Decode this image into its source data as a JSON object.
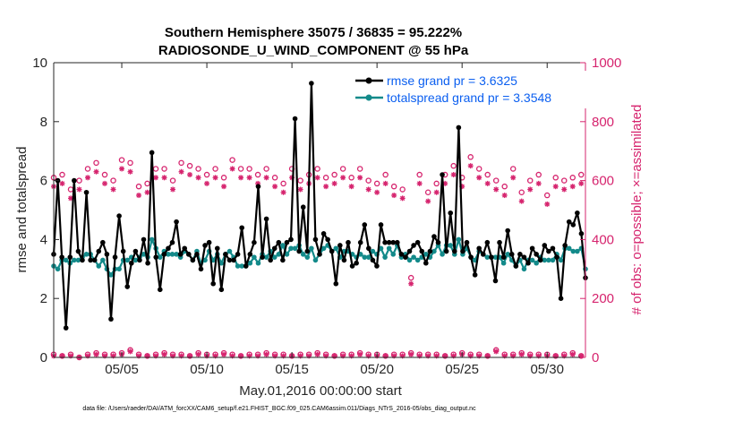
{
  "chart_data": {
    "type": "line",
    "title_line1": "Southern Hemisphere 35075 / 36835 = 95.222%",
    "title_line2": "RADIOSONDE_U_WIND_COMPONENT @ 55 hPa",
    "xlabel": "May.01,2016 00:00:00 start",
    "ylabel_left": "rmse and totalspread",
    "ylabel_right": "# of obs: o=possible; ×=assimilated",
    "footer": "data file: /Users/raeder/DAI/ATM_forcXX/CAM6_setup/f.e21.FHIST_BGC.f09_025.CAM6assim.011/Diags_NTrS_2016-05/obs_diag_output.nc",
    "xlim": [
      1,
      32.25
    ],
    "ylim_left": [
      0,
      10
    ],
    "ylim_right": [
      0,
      1000
    ],
    "x_ticks": [
      5,
      10,
      15,
      20,
      25,
      30
    ],
    "x_tick_labels": [
      "05/05",
      "05/10",
      "05/15",
      "05/20",
      "05/25",
      "05/30"
    ],
    "y_ticks_left": [
      0,
      2,
      4,
      6,
      8,
      10
    ],
    "y_ticks_left_labels": [
      "0",
      "2",
      "4",
      "6",
      "8",
      "10"
    ],
    "y_ticks_right": [
      0,
      200,
      400,
      600,
      800,
      1000
    ],
    "y_ticks_right_labels": [
      "0",
      "200",
      "400",
      "600",
      "800",
      "1000"
    ],
    "colors": {
      "rmse": "#000000",
      "spread": "#138a8a",
      "obs": "#d6246e",
      "legend_text": "#0b5ff0",
      "axis": "#262626"
    },
    "legend_location": "top-right",
    "series": [
      {
        "name": "rmse",
        "legend": "rmse grand pr = 3.6325",
        "values": [
          3.5,
          6.0,
          3.4,
          1.0,
          3.4,
          6.0,
          3.6,
          3.3,
          5.6,
          3.3,
          3.3,
          3.6,
          3.9,
          3.5,
          1.3,
          3.4,
          4.8,
          3.6,
          2.4,
          3.2,
          3.6,
          3.3,
          4.0,
          3.2,
          6.95,
          3.4,
          2.3,
          3.5,
          3.7,
          3.9,
          4.6,
          3.5,
          3.7,
          3.5,
          3.3,
          3.5,
          3.0,
          3.8,
          3.9,
          2.5,
          3.7,
          2.3,
          3.5,
          3.3,
          3.3,
          3.5,
          4.4,
          3.1,
          3.5,
          3.9,
          5.8,
          3.4,
          4.7,
          3.3,
          3.7,
          3.9,
          3.3,
          3.9,
          4.0,
          8.1,
          3.6,
          5.1,
          3.6,
          9.3,
          4.0,
          3.5,
          4.2,
          4.0,
          3.6,
          2.5,
          3.8,
          3.3,
          3.9,
          3.1,
          3.2,
          3.9,
          4.5,
          3.7,
          3.3,
          3.1,
          4.5,
          3.9,
          3.9,
          3.9,
          3.9,
          3.5,
          3.4,
          3.6,
          3.8,
          3.9,
          3.6,
          3.2,
          3.6,
          4.1,
          3.9,
          6.2,
          3.6,
          4.9,
          3.6,
          7.8,
          3.6,
          3.9,
          3.4,
          2.8,
          3.7,
          3.5,
          3.9,
          3.4,
          2.6,
          3.9,
          3.4,
          4.3,
          3.5,
          3.1,
          3.5,
          3.4,
          3.2,
          3.7,
          3.5,
          3.3,
          3.8,
          3.6,
          3.7,
          3.4,
          2.0,
          3.8,
          4.6,
          4.5,
          4.9,
          4.2,
          2.7
        ],
        "marker": "filled-circle"
      },
      {
        "name": "totalspread",
        "legend": "totalspread grand pr = 3.3548",
        "values": [
          3.1,
          3.0,
          3.3,
          3.3,
          3.2,
          3.3,
          3.3,
          3.4,
          3.5,
          3.5,
          3.3,
          3.1,
          3.3,
          3.0,
          2.8,
          3.0,
          3.0,
          3.3,
          3.3,
          3.4,
          3.3,
          3.4,
          3.5,
          3.4,
          4.0,
          3.7,
          3.4,
          3.6,
          3.5,
          3.5,
          3.5,
          3.4,
          3.6,
          3.5,
          3.3,
          3.6,
          3.2,
          3.3,
          3.6,
          3.3,
          3.5,
          3.2,
          3.5,
          3.6,
          3.4,
          3.1,
          3.1,
          3.1,
          3.2,
          3.4,
          3.2,
          3.5,
          3.4,
          3.6,
          3.4,
          3.5,
          3.8,
          3.5,
          3.7,
          3.7,
          3.8,
          3.5,
          3.4,
          3.7,
          3.3,
          3.5,
          3.7,
          3.8,
          3.6,
          3.7,
          3.4,
          3.6,
          3.6,
          3.5,
          3.4,
          3.5,
          3.4,
          3.4,
          3.6,
          3.5,
          3.7,
          3.4,
          3.7,
          3.5,
          3.8,
          3.4,
          3.5,
          3.3,
          3.4,
          3.3,
          3.4,
          3.5,
          3.4,
          3.6,
          3.8,
          3.5,
          3.8,
          3.8,
          3.5,
          4.0,
          3.5,
          3.7,
          3.4,
          3.3,
          3.6,
          3.5,
          3.4,
          3.4,
          3.4,
          3.4,
          3.2,
          3.5,
          3.3,
          3.1,
          3.3,
          3.0,
          3.3,
          3.3,
          3.2,
          3.4,
          3.3,
          3.3,
          3.3,
          3.5,
          3.3,
          3.7,
          3.7,
          3.6,
          3.6,
          3.7,
          3.0
        ],
        "marker": "filled-circle"
      }
    ],
    "obs_series": [
      {
        "name": "possible",
        "marker": "open-circle",
        "x": [
          1.0,
          1.5,
          2.0,
          2.5,
          3.0,
          3.5,
          4.0,
          4.5,
          5.0,
          5.5,
          6.0,
          6.5,
          7.0,
          7.5,
          8.0,
          8.5,
          9.0,
          9.5,
          10.0,
          10.5,
          11.0,
          11.5,
          12.0,
          12.5,
          13.0,
          13.5,
          14.0,
          14.5,
          15.0,
          15.5,
          16.0,
          16.5,
          17.0,
          17.5,
          18.0,
          18.5,
          19.0,
          19.5,
          20.0,
          20.5,
          21.0,
          21.5,
          22.0,
          22.5,
          23.0,
          23.5,
          24.0,
          24.5,
          25.0,
          25.5,
          26.0,
          26.5,
          27.0,
          27.5,
          28.0,
          28.5,
          29.0,
          29.5,
          30.0,
          30.5,
          31.0,
          31.5,
          32.0
        ],
        "values": [
          610,
          620,
          570,
          600,
          640,
          660,
          620,
          600,
          670,
          660,
          580,
          590,
          640,
          640,
          600,
          660,
          650,
          640,
          620,
          640,
          610,
          670,
          640,
          640,
          620,
          640,
          610,
          590,
          640,
          600,
          620,
          640,
          610,
          620,
          640,
          610,
          640,
          600,
          590,
          620,
          580,
          570,
          270,
          620,
          560,
          590,
          620,
          650,
          610,
          680,
          640,
          620,
          600,
          580,
          640,
          560,
          600,
          620,
          550,
          610,
          600,
          610,
          620
        ]
      },
      {
        "name": "assimilated",
        "marker": "asterisk",
        "x": [
          1.0,
          1.5,
          2.0,
          2.5,
          3.0,
          3.5,
          4.0,
          4.5,
          5.0,
          5.5,
          6.0,
          6.5,
          7.0,
          7.5,
          8.0,
          8.5,
          9.0,
          9.5,
          10.0,
          10.5,
          11.0,
          11.5,
          12.0,
          12.5,
          13.0,
          13.5,
          14.0,
          14.5,
          15.0,
          15.5,
          16.0,
          16.5,
          17.0,
          17.5,
          18.0,
          18.5,
          19.0,
          19.5,
          20.0,
          20.5,
          21.0,
          21.5,
          22.0,
          22.5,
          23.0,
          23.5,
          24.0,
          24.5,
          25.0,
          25.5,
          26.0,
          26.5,
          27.0,
          27.5,
          28.0,
          28.5,
          29.0,
          29.5,
          30.0,
          30.5,
          31.0,
          31.5,
          32.0
        ],
        "values": [
          580,
          590,
          540,
          570,
          610,
          630,
          590,
          570,
          640,
          630,
          550,
          560,
          610,
          610,
          570,
          630,
          620,
          610,
          590,
          610,
          580,
          640,
          610,
          610,
          590,
          610,
          580,
          560,
          610,
          570,
          590,
          610,
          580,
          590,
          610,
          580,
          610,
          570,
          560,
          590,
          550,
          540,
          250,
          590,
          530,
          560,
          590,
          620,
          580,
          650,
          610,
          590,
          570,
          550,
          610,
          530,
          570,
          590,
          520,
          580,
          570,
          580,
          590
        ]
      },
      {
        "name": "possible-zero",
        "marker": "open-circle",
        "x": [
          1.0,
          1.5,
          2.0,
          2.5,
          3.0,
          3.5,
          4.0,
          4.5,
          5.0,
          5.5,
          6.0,
          6.5,
          7.0,
          7.5,
          8.0,
          8.5,
          9.0,
          9.5,
          10.0,
          10.5,
          11.0,
          11.5,
          12.0,
          12.5,
          13.0,
          13.5,
          14.0,
          14.5,
          15.0,
          15.5,
          16.0,
          16.5,
          17.0,
          17.5,
          18.0,
          18.5,
          19.0,
          19.5,
          20.0,
          20.5,
          21.0,
          21.5,
          22.0,
          22.5,
          23.0,
          23.5,
          24.0,
          24.5,
          25.0,
          25.5,
          26.0,
          26.5,
          27.0,
          27.5,
          28.0,
          28.5,
          29.0,
          29.5,
          30.0,
          30.5,
          31.0,
          31.5,
          32.0
        ],
        "values": [
          10,
          5,
          10,
          0,
          10,
          15,
          10,
          10,
          15,
          25,
          10,
          5,
          10,
          15,
          10,
          10,
          5,
          15,
          10,
          10,
          15,
          10,
          5,
          10,
          10,
          15,
          10,
          10,
          5,
          10,
          10,
          15,
          10,
          5,
          10,
          10,
          15,
          10,
          10,
          5,
          10,
          10,
          15,
          10,
          10,
          10,
          5,
          10,
          15,
          10,
          10,
          5,
          25,
          10,
          10,
          15,
          10,
          10,
          10,
          5,
          10,
          15,
          5
        ]
      },
      {
        "name": "assimilated-zero",
        "marker": "asterisk",
        "x": [
          1.0,
          1.5,
          2.0,
          2.5,
          3.0,
          3.5,
          4.0,
          4.5,
          5.0,
          5.5,
          6.0,
          6.5,
          7.0,
          7.5,
          8.0,
          8.5,
          9.0,
          9.5,
          10.0,
          10.5,
          11.0,
          11.5,
          12.0,
          12.5,
          13.0,
          13.5,
          14.0,
          14.5,
          15.0,
          15.5,
          16.0,
          16.5,
          17.0,
          17.5,
          18.0,
          18.5,
          19.0,
          19.5,
          20.0,
          20.5,
          21.0,
          21.5,
          22.0,
          22.5,
          23.0,
          23.5,
          24.0,
          24.5,
          25.0,
          25.5,
          26.0,
          26.5,
          27.0,
          27.5,
          28.0,
          28.5,
          29.0,
          29.5,
          30.0,
          30.5,
          31.0,
          31.5,
          32.0
        ],
        "values": [
          5,
          5,
          5,
          0,
          5,
          10,
          5,
          5,
          10,
          20,
          5,
          5,
          5,
          10,
          5,
          5,
          5,
          10,
          5,
          5,
          10,
          5,
          5,
          5,
          5,
          10,
          5,
          5,
          5,
          5,
          5,
          10,
          5,
          5,
          5,
          5,
          10,
          5,
          5,
          5,
          5,
          5,
          10,
          5,
          5,
          5,
          5,
          5,
          10,
          5,
          5,
          5,
          20,
          5,
          5,
          10,
          5,
          5,
          5,
          5,
          5,
          10,
          5
        ]
      }
    ]
  }
}
